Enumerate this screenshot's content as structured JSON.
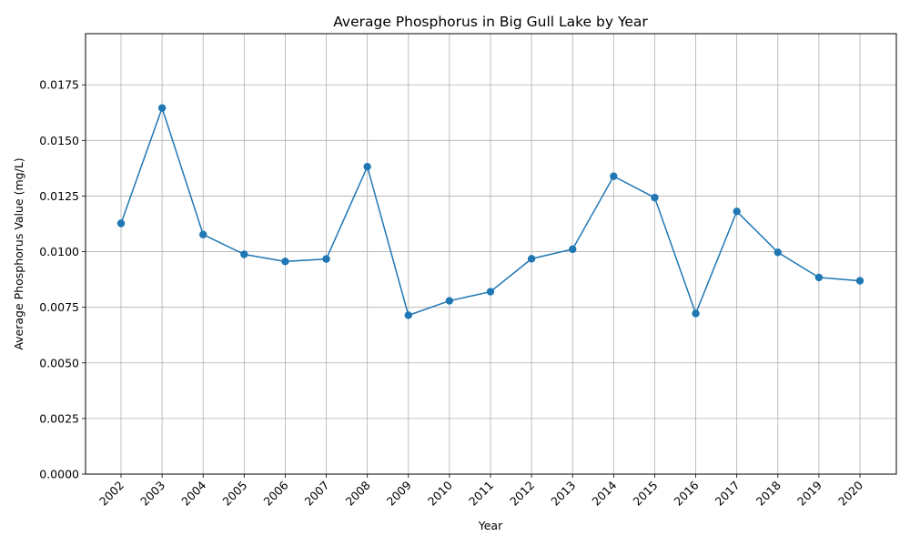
{
  "chart_data": {
    "type": "line",
    "title": "Average Phosphorus in Big Gull Lake by Year",
    "xlabel": "Year",
    "ylabel": "Average Phosphorus Value (mg/L)",
    "categories": [
      "2002",
      "2003",
      "2004",
      "2005",
      "2006",
      "2007",
      "2008",
      "2009",
      "2010",
      "2011",
      "2012",
      "2013",
      "2014",
      "2015",
      "2016",
      "2017",
      "2018",
      "2019",
      "2020"
    ],
    "series": [
      {
        "values": [
          0.01127,
          0.01646,
          0.01077,
          0.00988,
          0.00956,
          0.00967,
          0.01382,
          0.00714,
          0.00779,
          0.0082,
          0.00968,
          0.01011,
          0.01339,
          0.01243,
          0.00722,
          0.01181,
          0.00997,
          0.00884,
          0.00869
        ],
        "color": "#1f77b4",
        "marker": "circle"
      }
    ],
    "ylim": [
      0,
      0.0198
    ],
    "yticks": [
      "0.0000",
      "0.0025",
      "0.0050",
      "0.0075",
      "0.0100",
      "0.0125",
      "0.0150",
      "0.0175"
    ],
    "ytick_values": [
      0,
      0.0025,
      0.005,
      0.0075,
      0.01,
      0.0125,
      0.015,
      0.0175
    ],
    "grid": true,
    "xtick_rotation": "45deg"
  }
}
